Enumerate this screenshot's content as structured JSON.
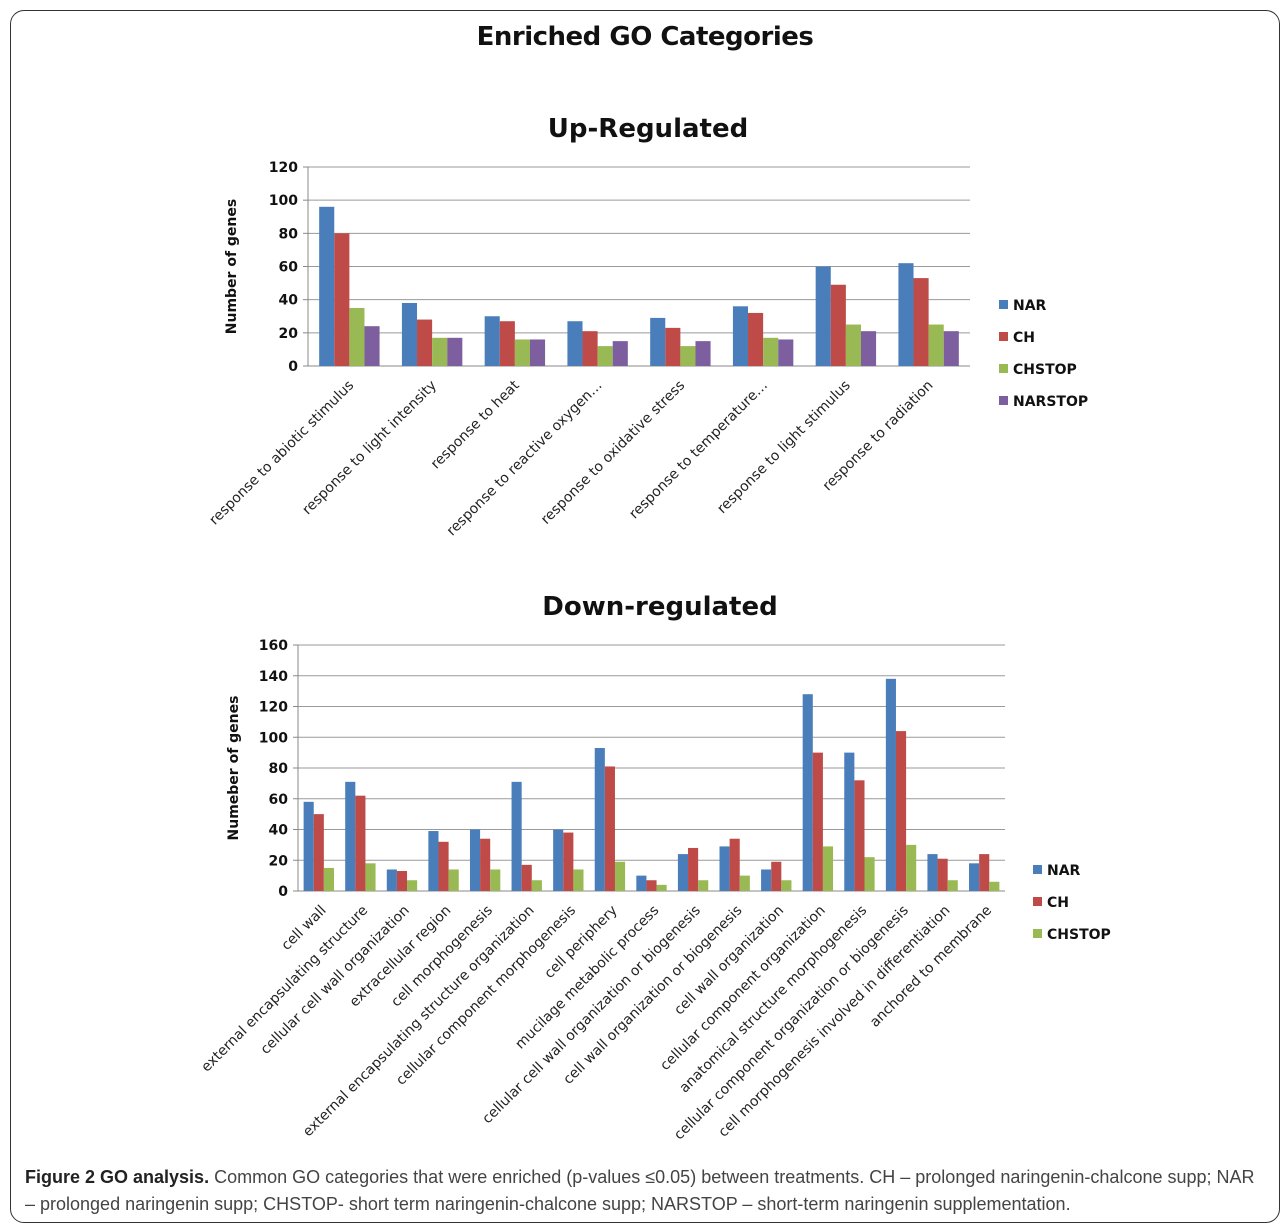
{
  "figure": {
    "main_title": "Enriched GO Categories",
    "caption_label": "Figure 2 GO analysis.",
    "caption_text": "Common GO categories that were enriched (p-values ≤0.05) between treatments. CH – prolonged naringenin-chalcone supp; NAR – prolonged naringenin supp; CHSTOP- short term naringenin-chalcone supp; NARSTOP – short-term naringenin supplementation."
  },
  "chart_data": [
    {
      "type": "bar",
      "title": "Up-Regulated",
      "xlabel": "",
      "ylabel": "Number of genes",
      "ylim": [
        0,
        120
      ],
      "yticks": [
        0,
        20,
        40,
        60,
        80,
        100,
        120
      ],
      "grid": true,
      "legend_position": "right",
      "categories": [
        "response to abiotic stimulus",
        "response to light intensity",
        "response to heat",
        "response to reactive oxygen…",
        "response to oxidative stress",
        "response to temperature…",
        "response to light stimulus",
        "response to radiation"
      ],
      "series": [
        {
          "name": "NAR",
          "color": "#4a7ebb",
          "values": [
            96,
            38,
            30,
            27,
            29,
            36,
            60,
            62
          ]
        },
        {
          "name": "CH",
          "color": "#be4b48",
          "values": [
            80,
            28,
            27,
            21,
            23,
            32,
            49,
            53
          ]
        },
        {
          "name": "CHSTOP",
          "color": "#98b954",
          "values": [
            35,
            17,
            16,
            12,
            12,
            17,
            25,
            25
          ]
        },
        {
          "name": "NARSTOP",
          "color": "#7d5fa0",
          "values": [
            24,
            17,
            16,
            15,
            15,
            16,
            21,
            21
          ]
        }
      ]
    },
    {
      "type": "bar",
      "title": "Down-regulated",
      "xlabel": "",
      "ylabel": "Numeber of genes",
      "ylim": [
        0,
        160
      ],
      "yticks": [
        0,
        20,
        40,
        60,
        80,
        100,
        120,
        140,
        160
      ],
      "grid": true,
      "legend_position": "right",
      "categories": [
        "cell wall",
        "external encapsulating structure",
        "cellular cell wall organization",
        "extracellular region",
        "cell morphogenesis",
        "external encapsulating structure organization",
        "cellular component morphogenesis",
        "cell periphery",
        "mucilage metabolic process",
        "cellular cell wall organization or biogenesis",
        "cell wall organization or biogenesis",
        "cell wall organization",
        "cellular component organization",
        "anatomical structure morphogenesis",
        "cellular component organization or biogenesis",
        "cell morphogenesis involved in differentiation",
        "anchored to membrane"
      ],
      "series": [
        {
          "name": "NAR",
          "color": "#4a7ebb",
          "values": [
            58,
            71,
            14,
            39,
            40,
            71,
            40,
            93,
            10,
            24,
            29,
            14,
            128,
            90,
            138,
            24,
            18
          ]
        },
        {
          "name": "CH",
          "color": "#be4b48",
          "values": [
            50,
            62,
            13,
            32,
            34,
            17,
            38,
            81,
            7,
            28,
            34,
            19,
            90,
            72,
            104,
            21,
            24
          ]
        },
        {
          "name": "CHSTOP",
          "color": "#98b954",
          "values": [
            15,
            18,
            7,
            14,
            14,
            7,
            14,
            19,
            4,
            7,
            10,
            7,
            29,
            22,
            30,
            7,
            6
          ]
        }
      ]
    }
  ]
}
